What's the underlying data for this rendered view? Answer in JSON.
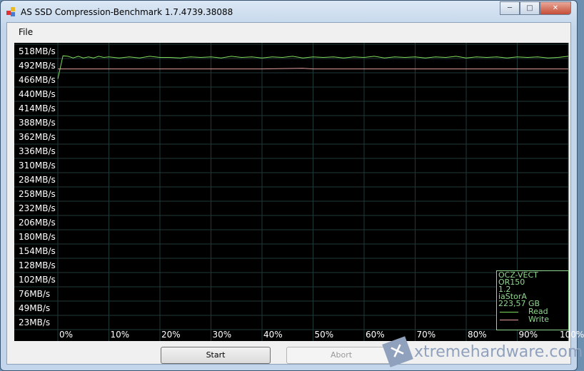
{
  "window": {
    "title": "AS SSD Compression-Benchmark 1.7.4739.38088",
    "minimize": "─",
    "maximize": "□",
    "close": "✕"
  },
  "menu": {
    "file": "File"
  },
  "chart_data": {
    "type": "line",
    "y_tick_labels": [
      "518MB/s",
      "492MB/s",
      "466MB/s",
      "440MB/s",
      "414MB/s",
      "388MB/s",
      "362MB/s",
      "336MB/s",
      "310MB/s",
      "284MB/s",
      "258MB/s",
      "232MB/s",
      "206MB/s",
      "180MB/s",
      "154MB/s",
      "128MB/s",
      "102MB/s",
      "76MB/s",
      "49MB/s",
      "23MB/s"
    ],
    "x_tick_labels": [
      "0%",
      "10%",
      "20%",
      "30%",
      "40%",
      "50%",
      "60%",
      "70%",
      "80%",
      "90%",
      "100%"
    ],
    "xlim": [
      0,
      100
    ],
    "grid": true,
    "series": [
      {
        "name": "Read",
        "color": "#7fdc5a",
        "x": [
          0,
          1,
          2,
          3,
          4,
          5,
          6,
          7,
          8,
          9,
          10,
          12,
          14,
          16,
          18,
          20,
          22,
          24,
          26,
          28,
          30,
          32,
          34,
          36,
          38,
          40,
          42,
          44,
          46,
          48,
          50,
          52,
          54,
          56,
          58,
          60,
          62,
          64,
          66,
          68,
          70,
          72,
          74,
          76,
          78,
          80,
          82,
          84,
          86,
          88,
          90,
          92,
          94,
          96,
          98,
          100
        ],
        "y": [
          468,
          510,
          509,
          506,
          509,
          506,
          508,
          506,
          509,
          507,
          508,
          506,
          508,
          506,
          509,
          507,
          507,
          506,
          508,
          507,
          508,
          506,
          509,
          507,
          508,
          506,
          508,
          507,
          509,
          506,
          508,
          507,
          508,
          506,
          508,
          507,
          509,
          506,
          508,
          507,
          508,
          506,
          508,
          507,
          509,
          506,
          508,
          507,
          508,
          506,
          508,
          507,
          508,
          506,
          507,
          509
        ]
      },
      {
        "name": "Write",
        "color": "#e8a0a0",
        "x": [
          0,
          10,
          20,
          30,
          40,
          48,
          50,
          60,
          70,
          80,
          90,
          100
        ],
        "y": [
          486,
          486,
          486,
          486,
          486,
          487,
          486,
          486,
          486,
          486,
          486,
          486
        ]
      }
    ]
  },
  "legend": {
    "drive": "OCZ-VECT OR150",
    "fw": "1.2",
    "driver": "iaStorA",
    "size": "223,57 GB",
    "read": "Read",
    "write": "Write"
  },
  "buttons": {
    "start": "Start",
    "abort": "Abort"
  },
  "watermark": "xtremehardware.com"
}
